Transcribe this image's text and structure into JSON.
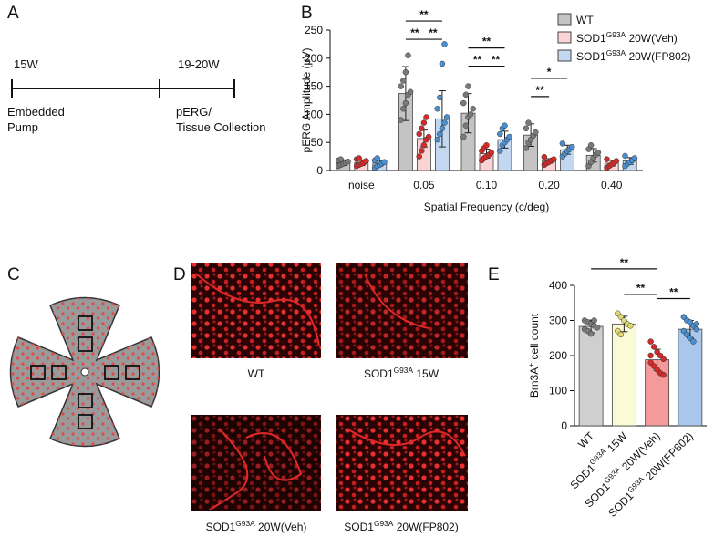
{
  "panel_labels": [
    "A",
    "B",
    "C",
    "D",
    "E"
  ],
  "timeline": {
    "start_label": "15W",
    "end_label": "19-20W",
    "start_event": [
      "Embedded",
      "Pump"
    ],
    "end_event": [
      "pERG/",
      "Tissue Collection"
    ]
  },
  "images": [
    {
      "label": [
        "WT"
      ]
    },
    {
      "label": [
        "SOD1",
        "G93A",
        " 15W"
      ]
    },
    {
      "label": [
        "SOD1",
        "G93A",
        " 20W(Veh)"
      ]
    },
    {
      "label": [
        "SOD1",
        "G93A",
        " 20W(FP802)"
      ]
    }
  ],
  "chart_data": [
    {
      "type": "bar",
      "ylabel": [
        "pERG Amplitude (μV)"
      ],
      "xlabel": "Spatial Frequency (c/deg)",
      "categories": [
        [
          "noise"
        ],
        [
          "0.05"
        ],
        [
          "0.10"
        ],
        [
          "0.20"
        ],
        [
          "0.40"
        ]
      ],
      "ylim": [
        0,
        250
      ],
      "yticks": [
        0,
        50,
        100,
        150,
        200,
        250
      ],
      "series": [
        {
          "name": [
            "WT"
          ],
          "color": "#c4c4c4",
          "point_color": "#7a7a7a",
          "values": [
            14,
            137,
            102,
            63,
            27
          ],
          "errors": [
            5,
            48,
            35,
            20,
            12
          ],
          "points": [
            [
              8,
              10,
              12,
              14,
              16,
              18,
              20
            ],
            [
              90,
              110,
              120,
              135,
              140,
              150,
              160,
              175,
              205
            ],
            [
              60,
              80,
              95,
              100,
              110,
              120,
              135,
              150
            ],
            [
              40,
              50,
              55,
              62,
              68,
              75,
              85
            ],
            [
              8,
              15,
              22,
              28,
              32,
              38,
              45
            ]
          ]
        },
        {
          "name": [
            "SOD1",
            "G93A",
            " 20W(Veh)"
          ],
          "color": "#fad4d4",
          "point_color": "#d42a2a",
          "values": [
            14,
            57,
            30,
            17,
            13
          ],
          "errors": [
            5,
            15,
            8,
            4,
            5
          ],
          "points": [
            [
              8,
              10,
              12,
              14,
              17,
              20,
              22
            ],
            [
              25,
              35,
              45,
              55,
              60,
              65,
              75,
              85,
              95
            ],
            [
              18,
              22,
              25,
              28,
              32,
              35,
              40,
              45
            ],
            [
              10,
              13,
              15,
              18,
              20,
              24
            ],
            [
              5,
              8,
              11,
              14,
              17,
              20
            ]
          ]
        },
        {
          "name": [
            "SOD1",
            "G93A",
            " 20W(FP802)"
          ],
          "color": "#c3d8f0",
          "point_color": "#4a8fd0",
          "values": [
            13,
            92,
            55,
            37,
            17
          ],
          "errors": [
            5,
            50,
            15,
            8,
            6
          ],
          "points": [
            [
              5,
              8,
              10,
              13,
              15,
              18,
              22
            ],
            [
              55,
              65,
              75,
              85,
              95,
              110,
              130,
              190,
              225
            ],
            [
              35,
              45,
              50,
              55,
              60,
              65,
              75,
              80
            ],
            [
              25,
              30,
              35,
              38,
              42,
              48
            ],
            [
              8,
              12,
              15,
              18,
              22,
              26
            ]
          ]
        }
      ],
      "annotations": [
        {
          "text": "**",
          "category": 1,
          "from": 0,
          "to": 2
        },
        {
          "text": "**",
          "category": 1,
          "from": 0,
          "to": 1
        },
        {
          "text": "**",
          "category": 1,
          "from": 1,
          "to": 2
        },
        {
          "text": "**",
          "category": 2,
          "from": 0,
          "to": 2
        },
        {
          "text": "**",
          "category": 2,
          "from": 0,
          "to": 1
        },
        {
          "text": "**",
          "category": 2,
          "from": 1,
          "to": 2
        },
        {
          "text": "*",
          "category": 3,
          "from": 0,
          "to": 2
        },
        {
          "text": "**",
          "category": 3,
          "from": 0,
          "to": 1
        }
      ]
    },
    {
      "type": "bar",
      "ylabel": [
        "Brn3A",
        "+",
        " cell count"
      ],
      "categories": [
        [
          "WT"
        ],
        [
          "SOD1",
          "G93A",
          " 15W"
        ],
        [
          "SOD1",
          "G93A",
          " 20W(Veh)"
        ],
        [
          "SOD1",
          "G93A",
          " 20W(FP802)"
        ]
      ],
      "ylim": [
        0,
        400
      ],
      "yticks": [
        0,
        100,
        200,
        300,
        400
      ],
      "values": [
        283,
        290,
        188,
        275
      ],
      "errors": [
        18,
        22,
        30,
        25
      ],
      "colors": [
        "#cfcfcf",
        "#fafad4",
        "#f59a9a",
        "#a9c6ec"
      ],
      "point_colors": [
        "#7a7a7a",
        "#e0d870",
        "#d42a2a",
        "#4a8fd0"
      ],
      "points": [
        [
          300,
          295,
          290,
          285,
          280,
          275,
          270,
          262,
          300
        ],
        [
          320,
          310,
          300,
          290,
          285,
          270,
          260
        ],
        [
          240,
          225,
          210,
          200,
          190,
          180,
          170,
          160,
          150,
          145,
          200
        ],
        [
          310,
          300,
          295,
          285,
          275,
          270,
          260,
          250,
          240,
          290
        ]
      ],
      "annotations": [
        {
          "text": "**",
          "from": 0,
          "to": 2
        },
        {
          "text": "**",
          "from": 1,
          "to": 2
        },
        {
          "text": "**",
          "from": 2,
          "to": 3
        }
      ]
    }
  ]
}
